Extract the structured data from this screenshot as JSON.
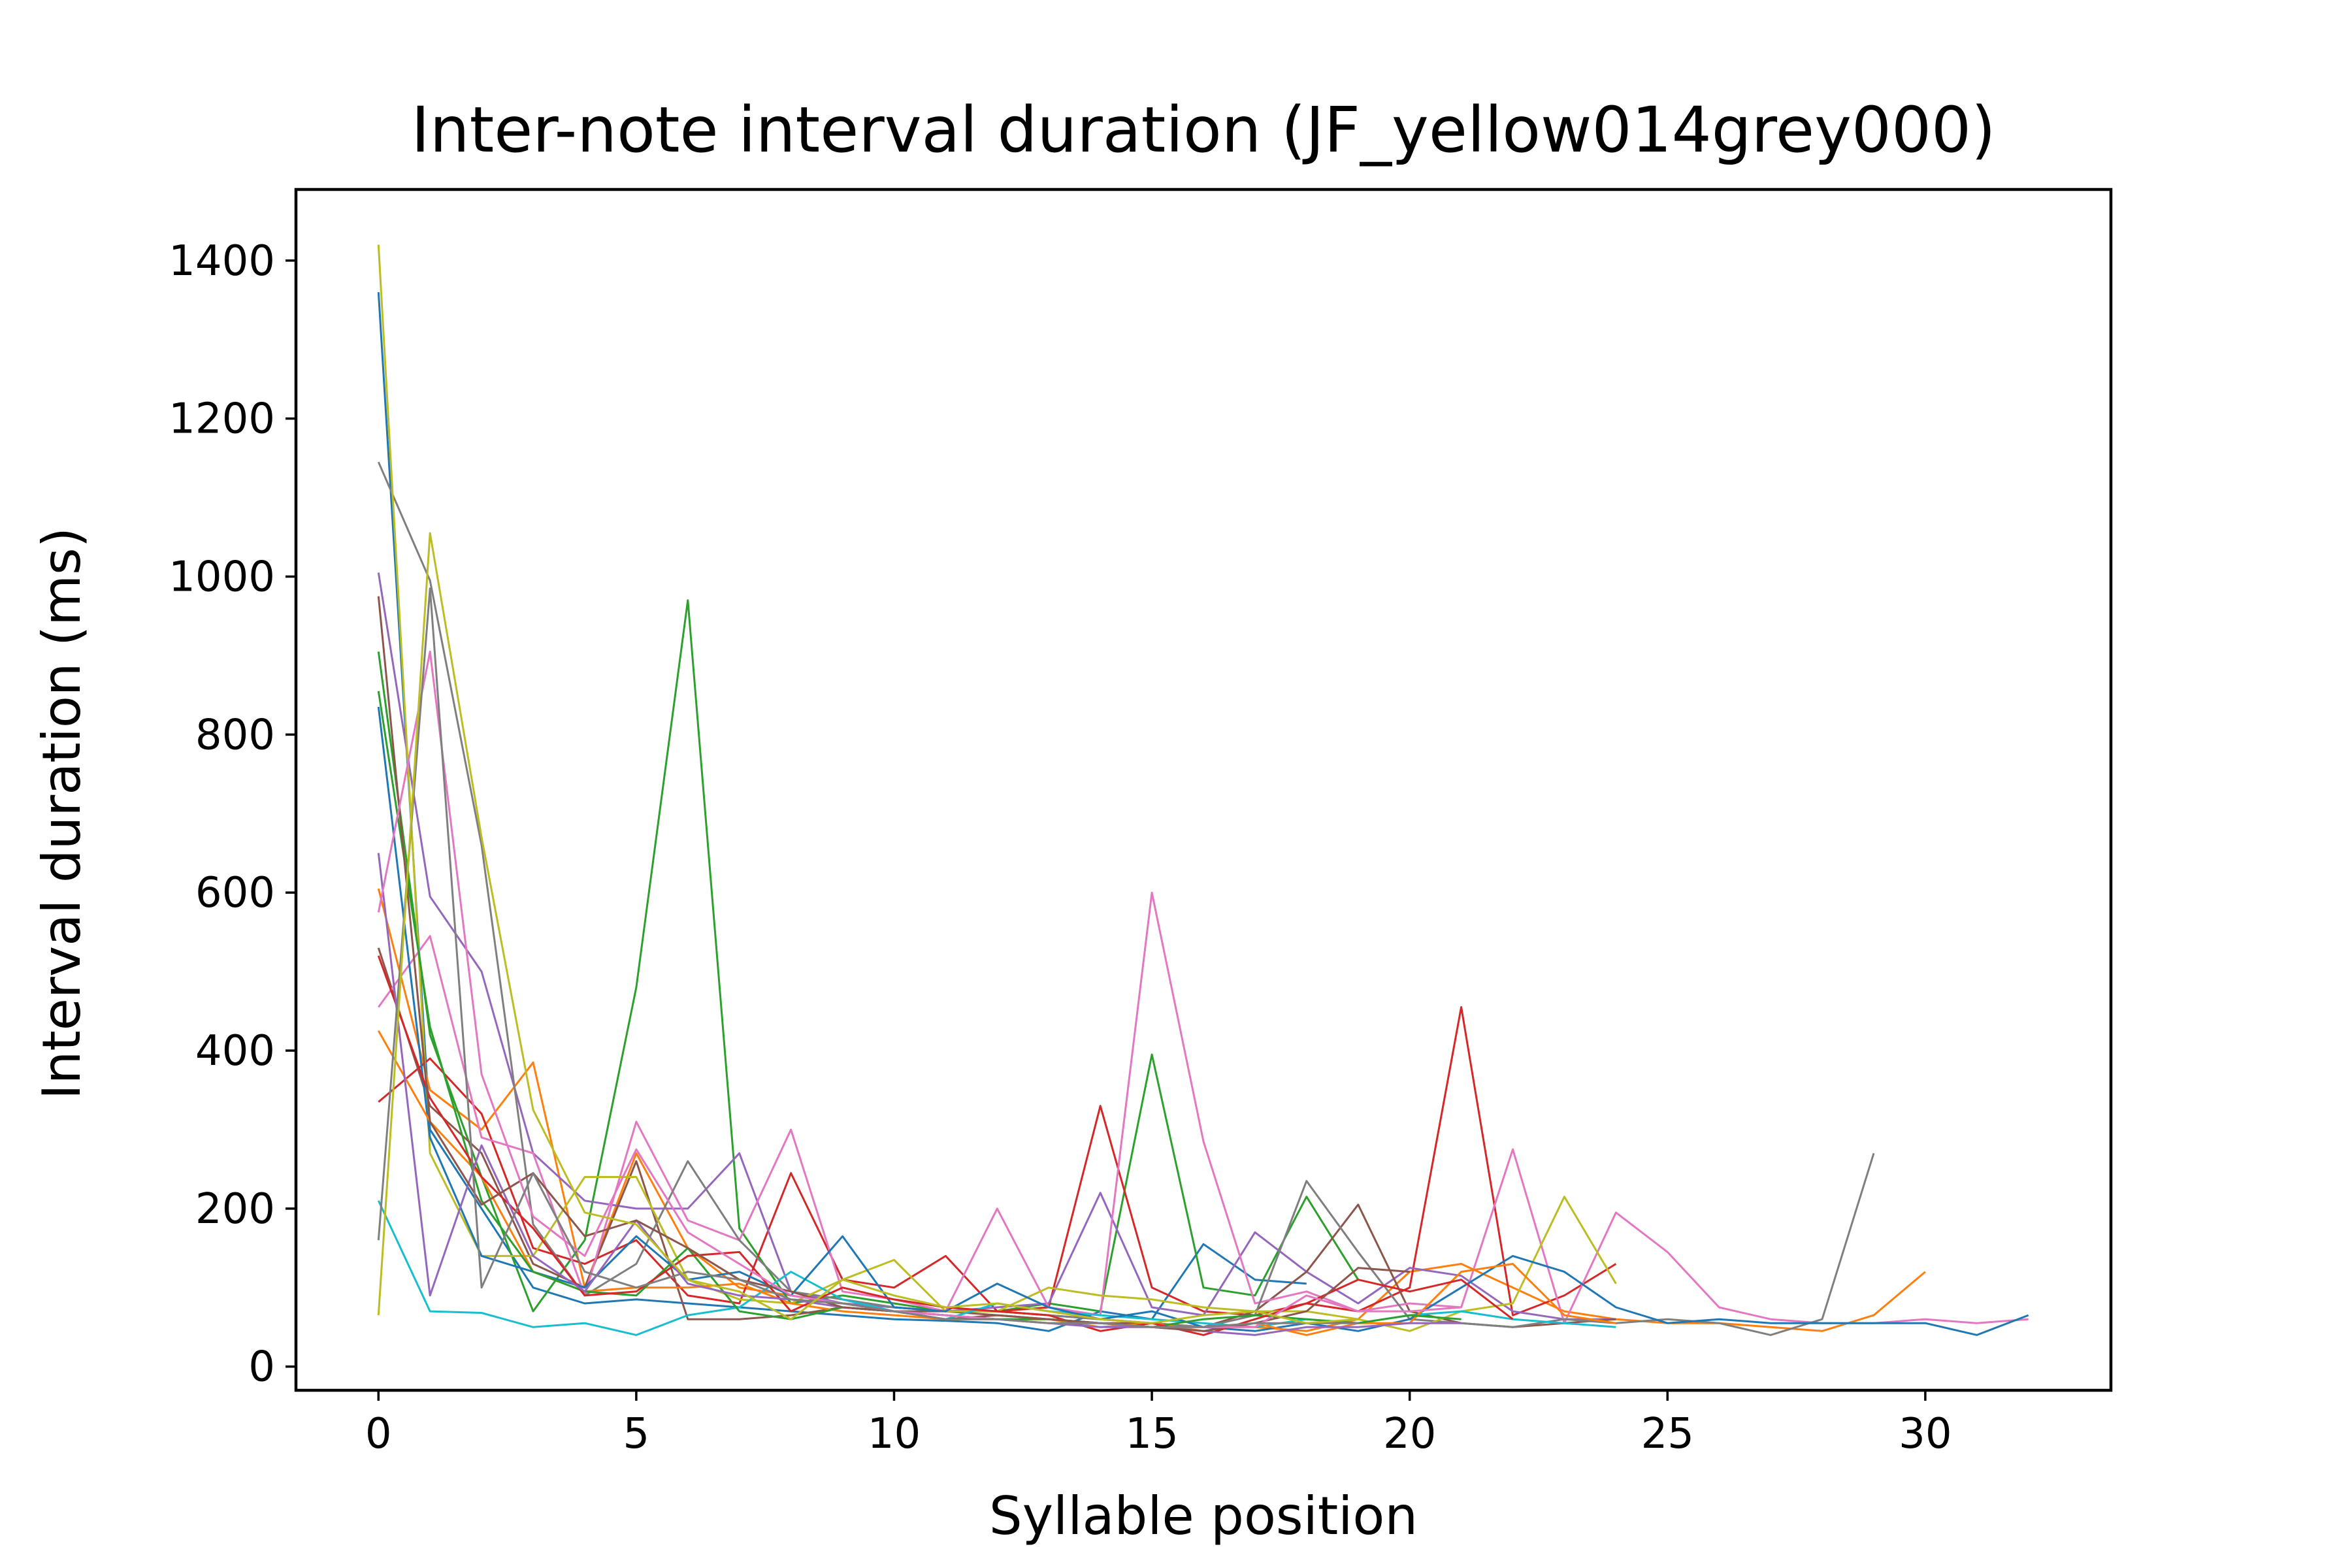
{
  "chart_data": {
    "type": "line",
    "title": "Inter-note interval duration (JF_yellow014grey000)",
    "xlabel": "Syllable position",
    "ylabel": "Interval duration (ms)",
    "xlim": [
      -1.6,
      33.6
    ],
    "ylim": [
      -30,
      1490
    ],
    "xticks": [
      0,
      5,
      10,
      15,
      20,
      25,
      30
    ],
    "yticks": [
      0,
      200,
      400,
      600,
      800,
      1000,
      1200,
      1400
    ],
    "grid": false,
    "legend": "none",
    "series": [
      {
        "color": "#1f77b4",
        "values": [
          1360,
          300,
          200,
          100,
          80,
          85,
          80,
          75,
          70,
          65,
          60,
          58,
          55,
          45,
          70,
          60,
          155,
          110,
          105
        ]
      },
      {
        "color": "#ff7f0e",
        "values": [
          605,
          350,
          300,
          385,
          100,
          270,
          150,
          100,
          90,
          80,
          75,
          70,
          70,
          65,
          60,
          55,
          50,
          50,
          45,
          60,
          120,
          130,
          100,
          70,
          60,
          55,
          55,
          50,
          45,
          65,
          120
        ]
      },
      {
        "color": "#2ca02c",
        "values": [
          905,
          420,
          240,
          70,
          160,
          480,
          970,
          175,
          80,
          90,
          80,
          70,
          70,
          80,
          70,
          395,
          100,
          90,
          215,
          110
        ]
      },
      {
        "color": "#d62728",
        "values": [
          335,
          390,
          320,
          150,
          130,
          160,
          90,
          80,
          245,
          110,
          100,
          140,
          70,
          75,
          330,
          100,
          70,
          65,
          80,
          70,
          100,
          455,
          65,
          90,
          130
        ]
      },
      {
        "color": "#9467bd",
        "values": [
          1005,
          595,
          500,
          270,
          210,
          200,
          200,
          270,
          95,
          80,
          75,
          70,
          75,
          80,
          220,
          75,
          65,
          170,
          120,
          80,
          125,
          115,
          70,
          60,
          60
        ]
      },
      {
        "color": "#8c564b",
        "values": [
          530,
          330,
          270,
          130,
          100,
          260,
          60,
          60,
          65,
          75,
          70,
          70,
          65,
          60,
          55,
          55,
          50,
          70,
          120,
          205,
          70,
          55,
          50,
          55,
          60
        ]
      },
      {
        "color": "#e377c2",
        "values": [
          455,
          545,
          290,
          270,
          90,
          310,
          185,
          160,
          300,
          95,
          85,
          70,
          200,
          75,
          65,
          600,
          285,
          80,
          95,
          70,
          80,
          75,
          275,
          55,
          195,
          145,
          75,
          60,
          55,
          55,
          60,
          55,
          60
        ]
      },
      {
        "color": "#7f7f7f",
        "values": [
          1145,
          995,
          660,
          180,
          90,
          130,
          260,
          160,
          95,
          85,
          75,
          70,
          70,
          65,
          60,
          55,
          50,
          65,
          235,
          145,
          60,
          55,
          50,
          60,
          55,
          60,
          55,
          40,
          60,
          270
        ]
      },
      {
        "color": "#bcbd22",
        "values": [
          1420,
          270,
          140,
          140,
          240,
          240,
          110,
          85,
          80,
          110,
          135,
          70,
          70,
          100,
          90,
          85,
          75,
          70,
          70,
          60,
          45,
          70,
          80,
          215,
          105
        ]
      },
      {
        "color": "#17becf",
        "values": [
          210,
          70,
          68,
          50,
          55,
          40,
          65,
          75,
          120,
          85,
          70,
          60,
          80,
          70,
          65,
          60,
          55,
          50,
          60,
          55,
          65,
          70,
          60,
          55,
          50
        ]
      },
      {
        "color": "#1f77b4",
        "values": [
          835,
          290,
          140,
          120,
          100,
          165,
          110,
          120,
          90,
          165,
          75,
          70,
          105,
          75,
          60,
          70,
          50,
          45,
          55,
          45,
          60,
          100,
          140,
          120,
          75,
          55,
          60,
          55,
          55,
          55,
          55,
          40,
          65
        ]
      },
      {
        "color": "#ff7f0e",
        "values": [
          425,
          310,
          240,
          120,
          95,
          100,
          100,
          105,
          80,
          70,
          65,
          60,
          60,
          60,
          50,
          55,
          45,
          55,
          40,
          55,
          55,
          120,
          130,
          65,
          55
        ]
      },
      {
        "color": "#2ca02c",
        "values": [
          855,
          430,
          210,
          120,
          95,
          90,
          150,
          70,
          60,
          75,
          70,
          65,
          60,
          60,
          55,
          50,
          60,
          65,
          60,
          55,
          65,
          60
        ]
      },
      {
        "color": "#d62728",
        "values": [
          520,
          340,
          240,
          175,
          90,
          95,
          140,
          145,
          70,
          100,
          85,
          75,
          70,
          65,
          45,
          55,
          40,
          60,
          80,
          110,
          95,
          110,
          60
        ]
      },
      {
        "color": "#9467bd",
        "values": [
          650,
          90,
          280,
          140,
          95,
          185,
          105,
          90,
          85,
          75,
          70,
          65,
          60,
          55,
          50,
          50,
          45,
          40,
          50,
          50,
          55,
          55
        ]
      },
      {
        "color": "#8c564b",
        "values": [
          975,
          310,
          205,
          245,
          165,
          185,
          150,
          110,
          95,
          75,
          70,
          60,
          65,
          60,
          55,
          50,
          45,
          55,
          70,
          125,
          120
        ]
      },
      {
        "color": "#e377c2",
        "values": [
          575,
          905,
          370,
          190,
          140,
          275,
          170,
          130,
          90,
          80,
          70,
          65,
          60,
          55,
          55,
          50,
          50,
          50,
          90,
          70,
          70,
          75
        ]
      },
      {
        "color": "#7f7f7f",
        "values": [
          160,
          985,
          100,
          245,
          120,
          100,
          120,
          110,
          85,
          80,
          70,
          60,
          60,
          55,
          55,
          50,
          50,
          55,
          55,
          55
        ]
      },
      {
        "color": "#bcbd22",
        "values": [
          65,
          1055,
          670,
          325,
          195,
          180,
          110,
          95,
          60,
          110,
          90,
          75,
          80,
          70,
          60,
          55,
          65,
          70,
          55,
          60
        ]
      }
    ]
  }
}
